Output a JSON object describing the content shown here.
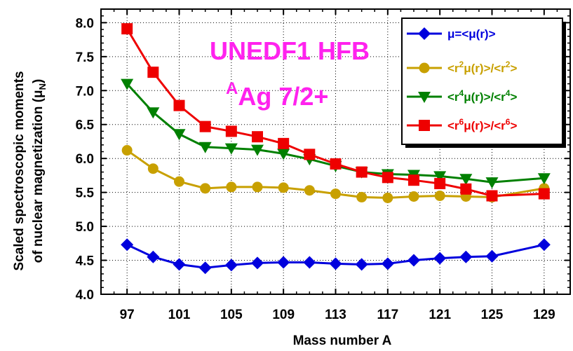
{
  "chart_data": {
    "type": "line",
    "xlabel": "Mass number A",
    "ylabel_line1": "Scaled spectroscopic moments",
    "ylabel_line2_prefix": "of nuclear magnetization (μ",
    "ylabel_line2_sub": "N",
    "ylabel_line2_suffix": ")",
    "annotation_line1": "UNEDF1 HFB",
    "annotation_sup": "A",
    "annotation_line2": "Ag 7/2+",
    "xlim": [
      95,
      131
    ],
    "ylim": [
      4.0,
      8.2
    ],
    "x_ticks": [
      97,
      101,
      105,
      109,
      113,
      117,
      121,
      125,
      129
    ],
    "y_ticks": [
      "4.0",
      "4.5",
      "5.0",
      "5.5",
      "6.0",
      "6.5",
      "7.0",
      "7.5",
      "8.0"
    ],
    "x": [
      97,
      99,
      101,
      103,
      105,
      107,
      109,
      111,
      113,
      115,
      117,
      119,
      121,
      123,
      125,
      129
    ],
    "legend_position": "top-right",
    "series": [
      {
        "legend": [
          {
            "t": "μ=<μ(r)>",
            "s": false
          }
        ],
        "color": "#0000dd",
        "marker": "diamond",
        "values": [
          4.73,
          4.55,
          4.44,
          4.39,
          4.43,
          4.46,
          4.47,
          4.47,
          4.45,
          4.44,
          4.45,
          4.5,
          4.53,
          4.55,
          4.56,
          4.73
        ]
      },
      {
        "legend": [
          {
            "t": "<r",
            "s": false
          },
          {
            "t": "2",
            "s": true
          },
          {
            "t": "μ(r)>/<r",
            "s": false
          },
          {
            "t": "2",
            "s": true
          },
          {
            "t": ">",
            "s": false
          }
        ],
        "color": "#c8a000",
        "marker": "circle",
        "values": [
          6.12,
          5.85,
          5.66,
          5.56,
          5.58,
          5.58,
          5.57,
          5.53,
          5.48,
          5.43,
          5.42,
          5.44,
          5.45,
          5.44,
          5.43,
          5.56
        ]
      },
      {
        "legend": [
          {
            "t": "<r",
            "s": false
          },
          {
            "t": "4",
            "s": true
          },
          {
            "t": "μ(r)>/<r",
            "s": false
          },
          {
            "t": "4",
            "s": true
          },
          {
            "t": ">",
            "s": false
          }
        ],
        "color": "#008000",
        "marker": "triangle-down",
        "values": [
          7.1,
          6.68,
          6.36,
          6.17,
          6.15,
          6.13,
          6.07,
          5.99,
          5.89,
          5.8,
          5.77,
          5.76,
          5.74,
          5.7,
          5.65,
          5.71
        ]
      },
      {
        "legend": [
          {
            "t": "<r",
            "s": false
          },
          {
            "t": "6",
            "s": true
          },
          {
            "t": "μ(r)>/<r",
            "s": false
          },
          {
            "t": "6",
            "s": true
          },
          {
            "t": ">",
            "s": false
          }
        ],
        "color": "#ee0000",
        "marker": "square",
        "values": [
          7.91,
          7.27,
          6.78,
          6.47,
          6.4,
          6.32,
          6.22,
          6.06,
          5.92,
          5.8,
          5.72,
          5.68,
          5.63,
          5.55,
          5.45,
          5.48
        ]
      }
    ]
  }
}
